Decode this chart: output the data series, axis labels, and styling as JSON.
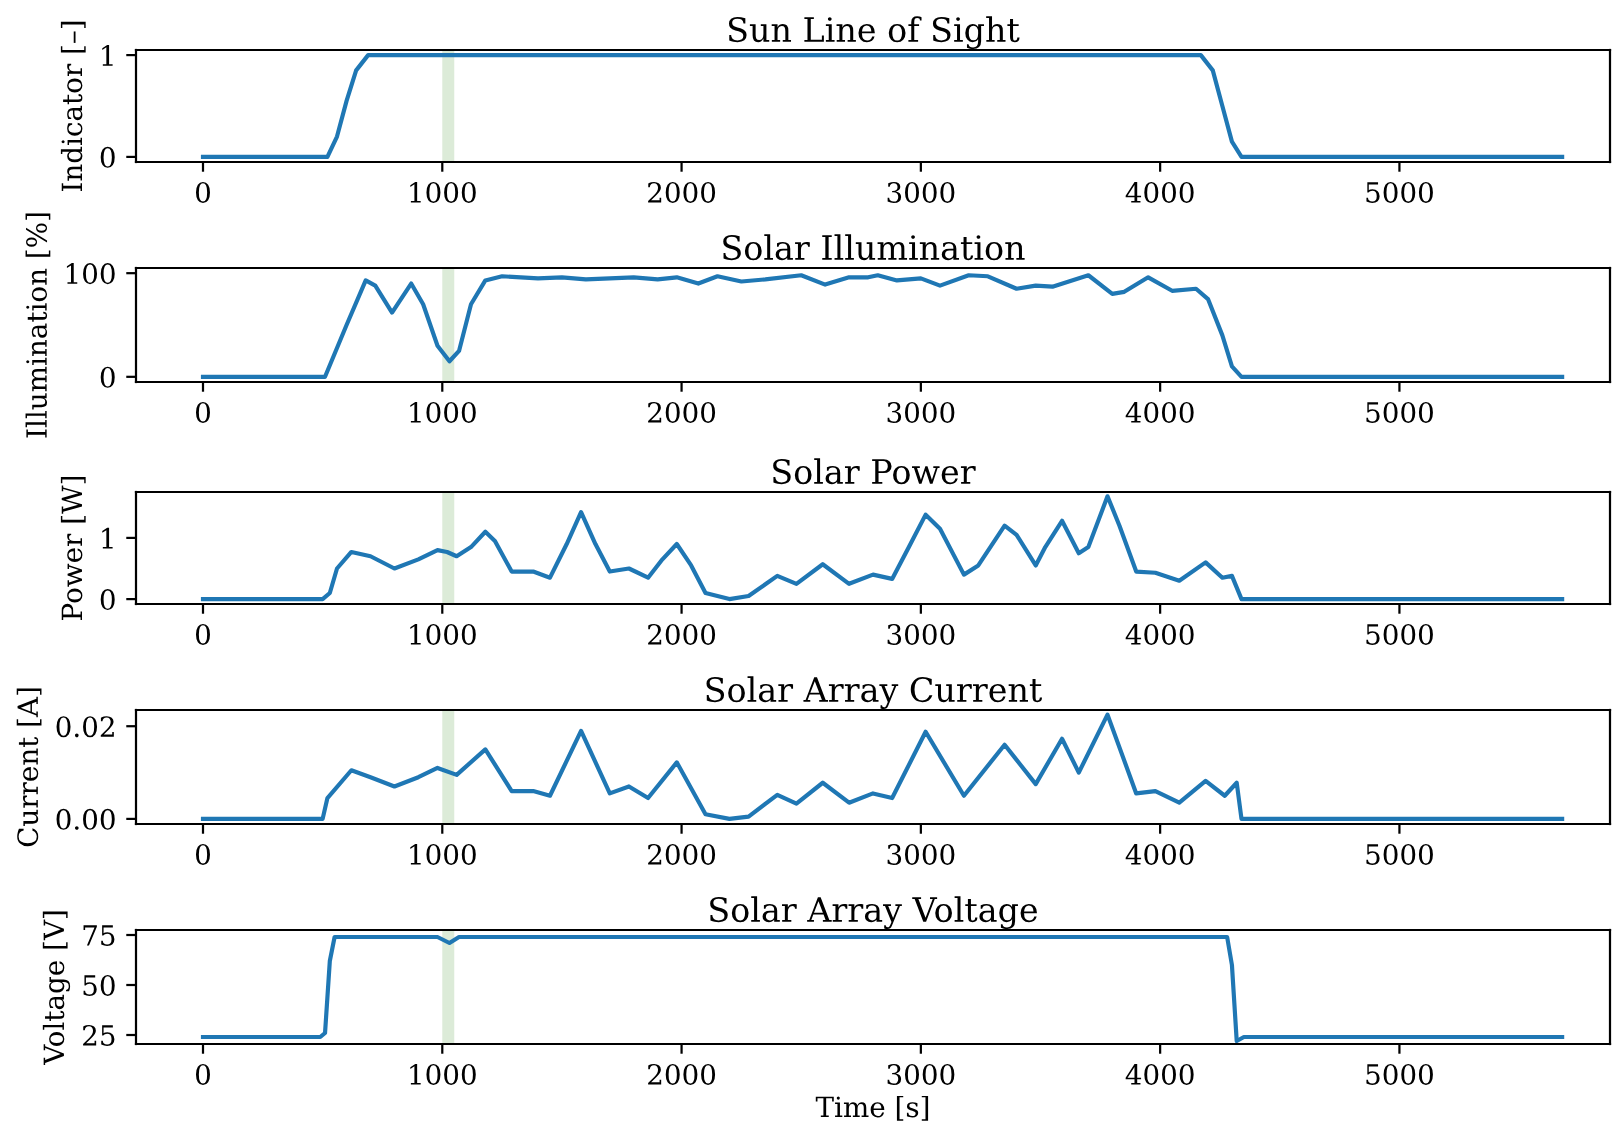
{
  "chart_data": [
    {
      "type": "line",
      "title": "Sun Line of Sight",
      "ylabel": "Indicator [–]",
      "xlim": [
        -280,
        5880
      ],
      "xticks": [
        0,
        1000,
        2000,
        3000,
        4000,
        5000
      ],
      "ylim": [
        -0.05,
        1.05
      ],
      "yticks": [
        0,
        1
      ],
      "grid": false,
      "bands": [
        {
          "axis": "x",
          "from": 1000,
          "to": 1050,
          "color": "#dcebd8"
        }
      ],
      "series": [
        {
          "color": "#1f77b4",
          "x": [
            0,
            520,
            560,
            600,
            640,
            690,
            4170,
            4220,
            4260,
            4300,
            4340,
            5680
          ],
          "values": [
            0,
            0,
            0.2,
            0.55,
            0.85,
            1,
            1,
            0.85,
            0.5,
            0.15,
            0,
            0
          ]
        }
      ]
    },
    {
      "type": "line",
      "title": "Solar Illumination",
      "ylabel": "Illumination [%]",
      "xlim": [
        -280,
        5880
      ],
      "xticks": [
        0,
        1000,
        2000,
        3000,
        4000,
        5000
      ],
      "ylim": [
        -5,
        105
      ],
      "yticks": [
        0,
        100
      ],
      "grid": false,
      "bands": [
        {
          "axis": "x",
          "from": 1000,
          "to": 1050,
          "color": "#dcebd8"
        }
      ],
      "series": [
        {
          "color": "#1f77b4",
          "x": [
            0,
            510,
            600,
            680,
            720,
            790,
            870,
            920,
            980,
            1030,
            1070,
            1120,
            1180,
            1250,
            1400,
            1500,
            1600,
            1800,
            1900,
            1980,
            2070,
            2150,
            2250,
            2350,
            2500,
            2600,
            2700,
            2780,
            2820,
            2900,
            3000,
            3080,
            3200,
            3280,
            3400,
            3480,
            3550,
            3700,
            3800,
            3850,
            3950,
            4050,
            4150,
            4200,
            4260,
            4300,
            4340,
            5680
          ],
          "values": [
            0,
            0,
            50,
            93,
            88,
            62,
            90,
            70,
            30,
            15,
            25,
            70,
            93,
            97,
            95,
            96,
            94,
            96,
            94,
            96,
            90,
            97,
            92,
            94,
            98,
            89,
            96,
            96,
            98,
            93,
            95,
            88,
            98,
            97,
            85,
            88,
            87,
            98,
            80,
            82,
            96,
            83,
            85,
            75,
            40,
            10,
            0,
            0
          ]
        }
      ]
    },
    {
      "type": "line",
      "title": "Solar Power",
      "ylabel": "Power [W]",
      "xlim": [
        -280,
        5880
      ],
      "xticks": [
        0,
        1000,
        2000,
        3000,
        4000,
        5000
      ],
      "ylim": [
        -0.08,
        1.75
      ],
      "yticks": [
        0,
        1
      ],
      "grid": false,
      "bands": [
        {
          "axis": "x",
          "from": 1000,
          "to": 1050,
          "color": "#dcebd8"
        }
      ],
      "series": [
        {
          "color": "#1f77b4",
          "x": [
            0,
            500,
            530,
            560,
            620,
            700,
            800,
            900,
            980,
            1020,
            1060,
            1120,
            1180,
            1220,
            1290,
            1380,
            1450,
            1520,
            1580,
            1640,
            1700,
            1780,
            1860,
            1920,
            1980,
            2040,
            2100,
            2200,
            2280,
            2400,
            2480,
            2590,
            2700,
            2800,
            2880,
            2950,
            3020,
            3080,
            3180,
            3240,
            3350,
            3400,
            3480,
            3520,
            3590,
            3660,
            3700,
            3780,
            3830,
            3900,
            3980,
            4080,
            4190,
            4260,
            4300,
            4340,
            5680
          ],
          "values": [
            0,
            0,
            0.1,
            0.5,
            0.77,
            0.7,
            0.5,
            0.65,
            0.8,
            0.77,
            0.7,
            0.85,
            1.1,
            0.95,
            0.45,
            0.45,
            0.35,
            0.9,
            1.42,
            0.9,
            0.45,
            0.5,
            0.35,
            0.65,
            0.9,
            0.55,
            0.1,
            0,
            0.05,
            0.38,
            0.25,
            0.57,
            0.25,
            0.4,
            0.33,
            0.85,
            1.38,
            1.15,
            0.4,
            0.55,
            1.2,
            1.05,
            0.55,
            0.85,
            1.28,
            0.75,
            0.85,
            1.68,
            1.2,
            0.45,
            0.43,
            0.3,
            0.6,
            0.35,
            0.38,
            0,
            0
          ]
        }
      ]
    },
    {
      "type": "line",
      "title": "Solar Array Current",
      "ylabel": "Current [A]",
      "xlim": [
        -280,
        5880
      ],
      "xticks": [
        0,
        1000,
        2000,
        3000,
        4000,
        5000
      ],
      "ylim": [
        -0.0011,
        0.0235
      ],
      "yticks": [
        {
          "value": 0,
          "label": "0.00"
        },
        {
          "value": 0.02,
          "label": "0.02"
        }
      ],
      "grid": false,
      "bands": [
        {
          "axis": "x",
          "from": 1000,
          "to": 1050,
          "color": "#dcebd8"
        }
      ],
      "series": [
        {
          "color": "#1f77b4",
          "x": [
            0,
            500,
            520,
            620,
            700,
            800,
            900,
            980,
            1060,
            1180,
            1290,
            1380,
            1450,
            1580,
            1700,
            1780,
            1860,
            1980,
            2100,
            2200,
            2280,
            2400,
            2480,
            2590,
            2700,
            2800,
            2880,
            3020,
            3180,
            3350,
            3480,
            3590,
            3660,
            3780,
            3900,
            3980,
            4080,
            4190,
            4270,
            4320,
            4340,
            5680
          ],
          "values": [
            0,
            0,
            0.0045,
            0.0105,
            0.009,
            0.007,
            0.009,
            0.011,
            0.0095,
            0.015,
            0.006,
            0.006,
            0.005,
            0.019,
            0.0055,
            0.007,
            0.0045,
            0.0122,
            0.001,
            0,
            0.0005,
            0.0052,
            0.0033,
            0.0078,
            0.0035,
            0.0055,
            0.0045,
            0.0188,
            0.005,
            0.016,
            0.0075,
            0.0173,
            0.01,
            0.0225,
            0.0055,
            0.006,
            0.0035,
            0.0082,
            0.005,
            0.0078,
            0,
            0
          ]
        }
      ]
    },
    {
      "type": "line",
      "title": "Solar Array Voltage",
      "ylabel": "Voltage [V]",
      "xlabel": "Time [s]",
      "xlim": [
        -280,
        5880
      ],
      "xticks": [
        0,
        1000,
        2000,
        3000,
        4000,
        5000
      ],
      "ylim": [
        20.5,
        77.5
      ],
      "yticks": [
        25,
        50,
        75
      ],
      "grid": false,
      "bands": [
        {
          "axis": "x",
          "from": 1000,
          "to": 1050,
          "color": "#dcebd8"
        }
      ],
      "series": [
        {
          "color": "#1f77b4",
          "x": [
            0,
            490,
            510,
            530,
            550,
            980,
            1030,
            1070,
            4280,
            4300,
            4320,
            4350,
            5680
          ],
          "values": [
            24,
            24,
            26,
            62,
            74,
            74,
            71,
            74,
            74,
            60,
            22,
            24,
            24
          ]
        }
      ]
    }
  ]
}
